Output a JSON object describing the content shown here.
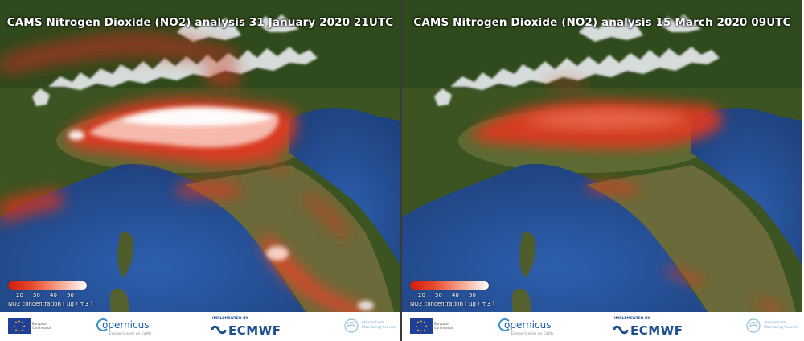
{
  "panels": [
    {
      "title": "CAMS Nitrogen Dioxide (NO2) analysis 31 January 2020 21UTC",
      "intensity": 1.0
    },
    {
      "title": "CAMS Nitrogen Dioxide (NO2) analysis 15 March 2020 09UTC",
      "intensity": 0.45
    }
  ],
  "legend": {
    "ticks": [
      "20",
      "30",
      "40",
      "50"
    ],
    "label": "NO2 concentration [ µg / m3 ]"
  },
  "footer": {
    "eu_text": "European Commission",
    "copernicus": "opernicus",
    "copernicus_sub": "Europe's eyes on Earth",
    "ecmwf_implemented": "IMPLEMENTED BY",
    "ecmwf": "ECMWF",
    "atmosphere_text": "Atmosphere Monitoring Service"
  },
  "colors": {
    "sea": "#27539a",
    "land": "#3c5a25",
    "snow": "#ffffff",
    "no2_low": "#d01c0c",
    "no2_high": "#ffffff"
  }
}
